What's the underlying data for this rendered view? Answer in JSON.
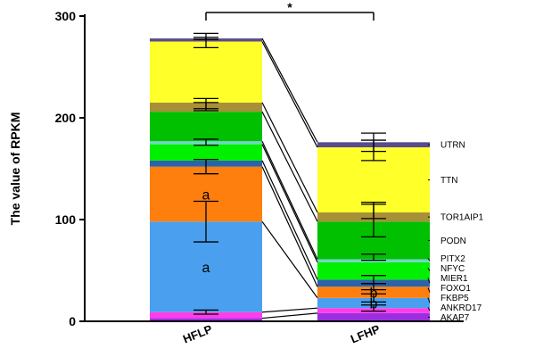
{
  "chart_data": {
    "type": "bar",
    "stacked": true,
    "categories": [
      "HFLP",
      "LFHP"
    ],
    "ylabel": "The value of  RPKM",
    "xlabel": "",
    "ylim": [
      0,
      300
    ],
    "yticks": [
      0,
      100,
      200,
      300
    ],
    "series": [
      {
        "name": "AKAP7",
        "color": "#9b2fe0",
        "values": [
          3,
          8
        ]
      },
      {
        "name": "ANKRD17",
        "color": "#ff3ee8",
        "values": [
          6,
          5
        ]
      },
      {
        "name": "FKBP5",
        "color": "#4aa0ef",
        "values": [
          89,
          10
        ]
      },
      {
        "name": "FOXO1",
        "color": "#ff7f0e",
        "values": [
          54,
          11
        ]
      },
      {
        "name": "MIER1",
        "color": "#2a63a8",
        "values": [
          6,
          7
        ]
      },
      {
        "name": "NFYC",
        "color": "#00f000",
        "values": [
          16,
          17
        ]
      },
      {
        "name": "PITX2",
        "color": "#6ed6c8",
        "values": [
          3,
          3
        ]
      },
      {
        "name": "PODN",
        "color": "#00c000",
        "values": [
          29,
          37
        ]
      },
      {
        "name": "TOR1AIP1",
        "color": "#a89038",
        "values": [
          9,
          9
        ]
      },
      {
        "name": "TTN",
        "color": "#ffff2a",
        "values": [
          60,
          64
        ]
      },
      {
        "name": "UTRN",
        "color": "#5a4a8e",
        "values": [
          3,
          5
        ]
      }
    ],
    "error_bars": {
      "HFLP": [
        {
          "center": 9,
          "err": 2
        },
        {
          "center": 98,
          "err": 20
        },
        {
          "center": 152,
          "err": 7
        },
        {
          "center": 176,
          "err": 3
        },
        {
          "center": 211,
          "err": 4
        },
        {
          "center": 214,
          "err": 5
        },
        {
          "center": 274,
          "err": 5
        },
        {
          "center": 280,
          "err": 3
        }
      ],
      "LFHP": [
        {
          "center": 13,
          "err": 3
        },
        {
          "center": 23,
          "err": 4
        },
        {
          "center": 34,
          "err": 3
        },
        {
          "center": 41,
          "err": 4
        },
        {
          "center": 63,
          "err": 3
        },
        {
          "center": 100,
          "err": 17
        },
        {
          "center": 108,
          "err": 7
        },
        {
          "center": 168,
          "err": 10
        },
        {
          "center": 176,
          "err": 9
        }
      ]
    },
    "annotations": [
      {
        "text": "a",
        "category": "HFLP",
        "series": "FOXO1"
      },
      {
        "text": "a",
        "category": "HFLP",
        "series": "FKBP5"
      },
      {
        "text": "b",
        "category": "LFHP",
        "series": "FOXO1"
      },
      {
        "text": "b",
        "category": "LFHP",
        "series": "FKBP5"
      }
    ],
    "significance": {
      "text": "*",
      "between": [
        "HFLP",
        "LFHP"
      ]
    },
    "legend": "right, labels attached to LFHP segments"
  }
}
